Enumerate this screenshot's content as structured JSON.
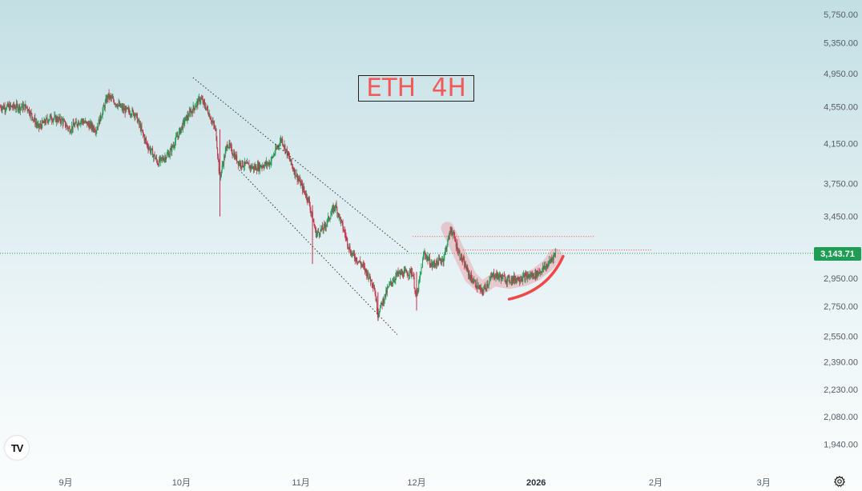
{
  "title": "ETH  4H",
  "current_price_label": "3,143.71",
  "logo_text": "TV",
  "colors": {
    "up": "#1e9e57",
    "down": "#c2334a",
    "annotation": "#f04848",
    "highlight": "#e77e86",
    "price_line": "#2c9a5a",
    "channel": "#333333"
  },
  "icons": [
    "tradingview-logo-icon",
    "settings-icon"
  ],
  "chart_data": {
    "type": "candlestick",
    "title": "ETH  4H",
    "y_scale": "log",
    "y_ticks": [
      "5,750.00",
      "5,350.00",
      "4,950.00",
      "4,550.00",
      "4,150.00",
      "3,750.00",
      "3,450.00",
      "2,950.00",
      "2,750.00",
      "2,550.00",
      "2,390.00",
      "2,230.00",
      "2,080.00",
      "1,940.00"
    ],
    "x_ticks": [
      "9月",
      "10月",
      "11月",
      "12月",
      "2026",
      "2月",
      "3月"
    ],
    "x_ticks_bold": [
      "2026"
    ],
    "current_price": 3143.71,
    "price_path_approx": [
      {
        "x": "2025-08-22",
        "y": 4550
      },
      {
        "x": "2025-08-25",
        "y": 4320
      },
      {
        "x": "2025-08-28",
        "y": 4430
      },
      {
        "x": "2025-08-31",
        "y": 4400
      },
      {
        "x": "2025-09-02",
        "y": 4300
      },
      {
        "x": "2025-09-05",
        "y": 4400
      },
      {
        "x": "2025-09-09",
        "y": 4300
      },
      {
        "x": "2025-09-12",
        "y": 4680
      },
      {
        "x": "2025-09-16",
        "y": 4520
      },
      {
        "x": "2025-09-19",
        "y": 4480
      },
      {
        "x": "2025-09-22",
        "y": 4150
      },
      {
        "x": "2025-09-25",
        "y": 3950
      },
      {
        "x": "2025-09-28",
        "y": 4050
      },
      {
        "x": "2025-10-02",
        "y": 4400
      },
      {
        "x": "2025-10-06",
        "y": 4650
      },
      {
        "x": "2025-10-08",
        "y": 4500
      },
      {
        "x": "2025-10-10",
        "y": 4280
      },
      {
        "x": "2025-10-11",
        "y": 3800
      },
      {
        "x": "2025-10-13",
        "y": 4150
      },
      {
        "x": "2025-10-16",
        "y": 3950
      },
      {
        "x": "2025-10-20",
        "y": 3900
      },
      {
        "x": "2025-10-24",
        "y": 3950
      },
      {
        "x": "2025-10-27",
        "y": 4200
      },
      {
        "x": "2025-10-30",
        "y": 3900
      },
      {
        "x": "2025-11-03",
        "y": 3600
      },
      {
        "x": "2025-11-05",
        "y": 3300
      },
      {
        "x": "2025-11-07",
        "y": 3350
      },
      {
        "x": "2025-11-10",
        "y": 3550
      },
      {
        "x": "2025-11-12",
        "y": 3350
      },
      {
        "x": "2025-11-14",
        "y": 3150
      },
      {
        "x": "2025-11-17",
        "y": 3050
      },
      {
        "x": "2025-11-20",
        "y": 2900
      },
      {
        "x": "2025-11-21",
        "y": 2700
      },
      {
        "x": "2025-11-24",
        "y": 2900
      },
      {
        "x": "2025-11-26",
        "y": 2980
      },
      {
        "x": "2025-11-30",
        "y": 3000
      },
      {
        "x": "2025-12-01",
        "y": 2800
      },
      {
        "x": "2025-12-03",
        "y": 3150
      },
      {
        "x": "2025-12-05",
        "y": 3050
      },
      {
        "x": "2025-12-08",
        "y": 3100
      },
      {
        "x": "2025-12-10",
        "y": 3350
      },
      {
        "x": "2025-12-12",
        "y": 3150
      },
      {
        "x": "2025-12-15",
        "y": 2960
      },
      {
        "x": "2025-12-18",
        "y": 2850
      },
      {
        "x": "2025-12-21",
        "y": 2980
      },
      {
        "x": "2025-12-25",
        "y": 2940
      },
      {
        "x": "2025-12-29",
        "y": 2960
      },
      {
        "x": "2026-01-01",
        "y": 2980
      },
      {
        "x": "2026-01-04",
        "y": 3050
      },
      {
        "x": "2026-01-06",
        "y": 3143.71
      }
    ],
    "annotations": {
      "descending_channel": "dotted parallel lines",
      "resistance_lines": [
        3280,
        3170
      ],
      "highlighted_path": "rounded pullback and recovery",
      "curve": "red upward arc"
    }
  }
}
